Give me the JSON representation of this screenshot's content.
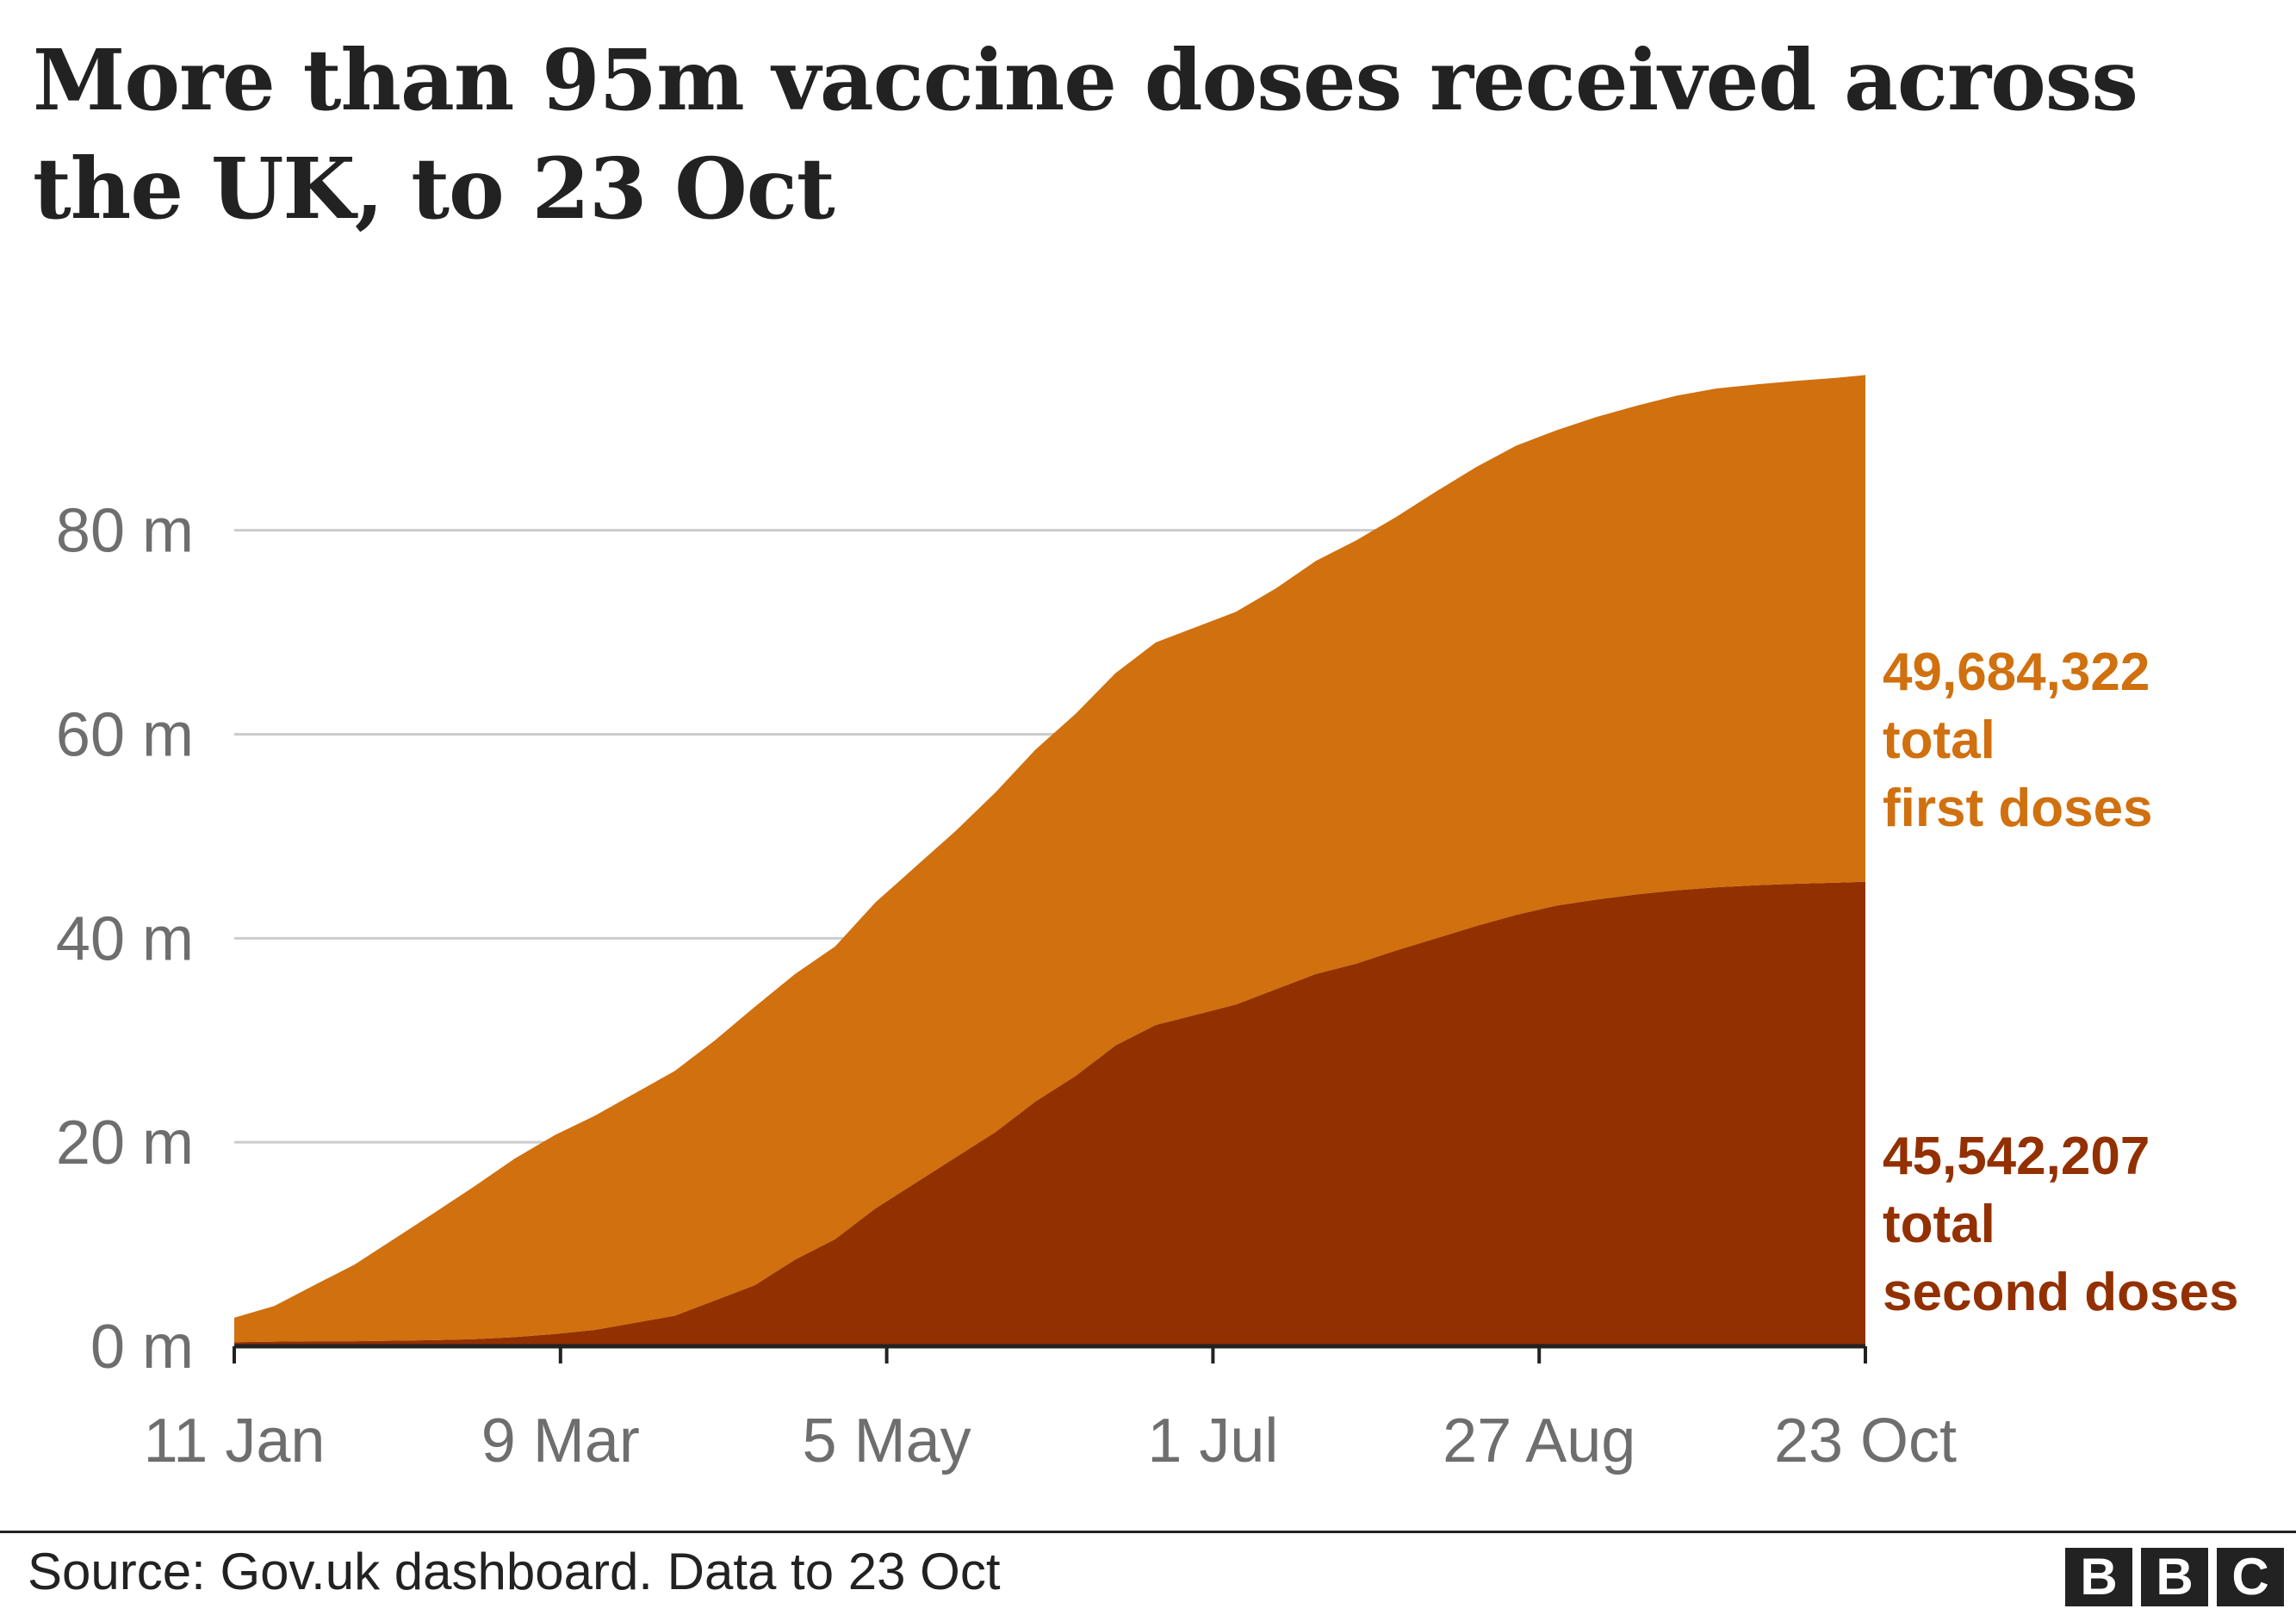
{
  "title": "More than 95m vaccine doses received across the UK, to 23 Oct",
  "source": "Source: Gov.uk dashboard. Data to 23 Oct",
  "logo": {
    "letters": [
      "B",
      "B",
      "C"
    ]
  },
  "colors": {
    "first_doses": "#d0700e",
    "second_doses": "#933000",
    "gridline": "#cccccc",
    "axis": "#222222",
    "tick_text": "#6e6e6e",
    "first_label": "#d0700e",
    "second_label": "#933000"
  },
  "chart_data": {
    "type": "area",
    "stacked": true,
    "title": "More than 95m vaccine doses received across the UK, to 23 Oct",
    "xlabel": "",
    "ylabel": "",
    "ylim": [
      0,
      95
    ],
    "grid": true,
    "y_ticks": [
      {
        "value": 0,
        "label": "0 m"
      },
      {
        "value": 20,
        "label": "20 m"
      },
      {
        "value": 40,
        "label": "40 m"
      },
      {
        "value": 60,
        "label": "60 m"
      },
      {
        "value": 80,
        "label": "80 m"
      }
    ],
    "x_ticks": [
      {
        "date": "2021-01-11",
        "label": "11 Jan"
      },
      {
        "date": "2021-03-09",
        "label": "9 Mar"
      },
      {
        "date": "2021-05-05",
        "label": "5 May"
      },
      {
        "date": "2021-07-01",
        "label": "1 Jul"
      },
      {
        "date": "2021-08-27",
        "label": "27 Aug"
      },
      {
        "date": "2021-10-23",
        "label": "23 Oct"
      }
    ],
    "x": [
      "2021-01-11",
      "2021-01-18",
      "2021-01-25",
      "2021-02-01",
      "2021-02-08",
      "2021-02-15",
      "2021-02-22",
      "2021-03-01",
      "2021-03-08",
      "2021-03-15",
      "2021-03-22",
      "2021-03-29",
      "2021-04-05",
      "2021-04-12",
      "2021-04-19",
      "2021-04-26",
      "2021-05-03",
      "2021-05-10",
      "2021-05-17",
      "2021-05-24",
      "2021-05-31",
      "2021-06-07",
      "2021-06-14",
      "2021-06-21",
      "2021-06-28",
      "2021-07-05",
      "2021-07-12",
      "2021-07-19",
      "2021-07-26",
      "2021-08-02",
      "2021-08-09",
      "2021-08-16",
      "2021-08-23",
      "2021-08-30",
      "2021-09-06",
      "2021-09-13",
      "2021-09-20",
      "2021-09-27",
      "2021-10-04",
      "2021-10-11",
      "2021-10-18",
      "2021-10-23"
    ],
    "series": [
      {
        "name": "total second doses",
        "end_value": "45,542,207",
        "label_lines": [
          "45,542,207",
          "total",
          "second doses"
        ],
        "values": [
          0.4,
          0.45,
          0.5,
          0.5,
          0.55,
          0.6,
          0.7,
          0.9,
          1.2,
          1.6,
          2.3,
          3.0,
          4.5,
          6.0,
          8.5,
          10.5,
          13.5,
          16.0,
          18.5,
          21.0,
          24.0,
          26.5,
          29.5,
          31.5,
          32.5,
          33.5,
          35.0,
          36.5,
          37.5,
          38.8,
          40.0,
          41.2,
          42.3,
          43.2,
          43.8,
          44.3,
          44.7,
          45.0,
          45.2,
          45.35,
          45.45,
          45.54
        ]
      },
      {
        "name": "total first doses",
        "end_value": "49,684,322",
        "label_lines": [
          "49,684,322",
          "total",
          "first doses"
        ],
        "values": [
          2.4,
          3.5,
          5.5,
          7.5,
          10.0,
          12.5,
          15.0,
          17.5,
          19.5,
          21.0,
          22.5,
          24.0,
          25.5,
          27.3,
          28.0,
          28.7,
          30.0,
          31.0,
          32.0,
          33.3,
          34.5,
          35.5,
          36.5,
          37.5,
          38.0,
          38.5,
          39.3,
          40.5,
          41.5,
          42.5,
          43.8,
          45.0,
          46.0,
          46.6,
          47.3,
          47.9,
          48.5,
          48.9,
          49.1,
          49.3,
          49.5,
          49.68
        ]
      }
    ],
    "legend": "end-labels-right"
  }
}
